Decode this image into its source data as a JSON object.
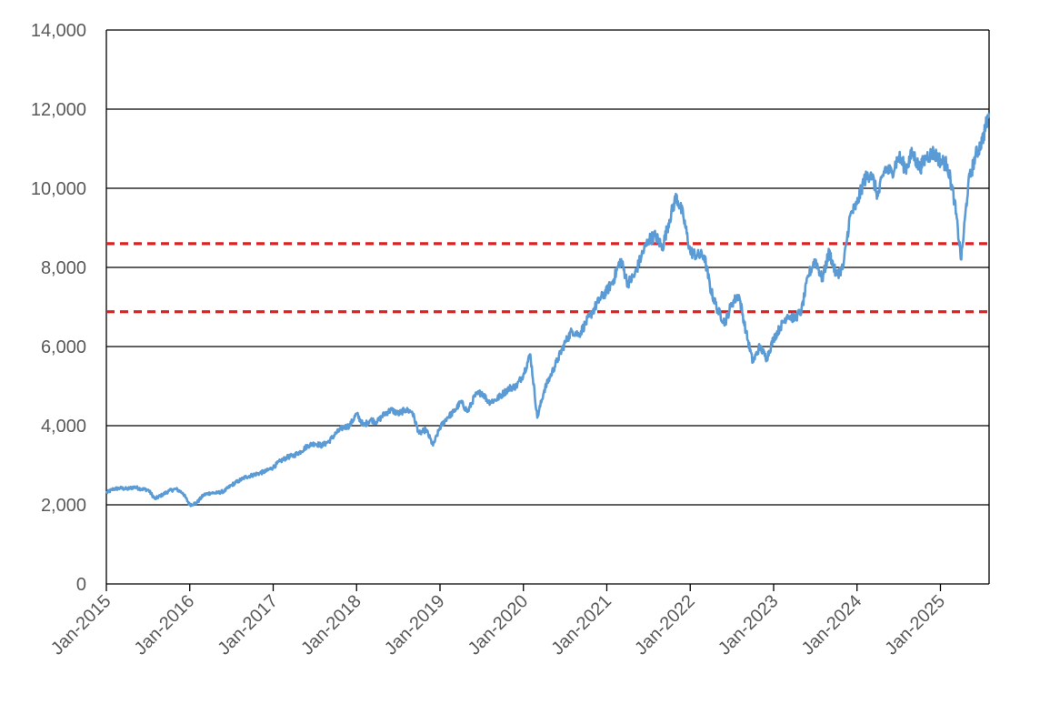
{
  "chart_data": {
    "type": "line",
    "title": "",
    "xlabel": "",
    "ylabel": "",
    "ylim": [
      0,
      14000
    ],
    "yticks": [
      0,
      2000,
      4000,
      6000,
      8000,
      10000,
      12000,
      14000
    ],
    "ytick_labels": [
      "0",
      "2,000",
      "4,000",
      "6,000",
      "8,000",
      "10,000",
      "12,000",
      "14,000"
    ],
    "xlim": [
      "2015-01",
      "2025-08"
    ],
    "xticks": [
      "2015-01",
      "2016-01",
      "2017-01",
      "2018-01",
      "2019-01",
      "2020-01",
      "2021-01",
      "2022-01",
      "2023-01",
      "2024-01",
      "2025-01"
    ],
    "xtick_labels": [
      "Jan-2015",
      "Jan-2016",
      "Jan-2017",
      "Jan-2018",
      "Jan-2019",
      "Jan-2020",
      "Jan-2021",
      "Jan-2022",
      "Jan-2023",
      "Jan-2024",
      "Jan-2025"
    ],
    "grid": "horizontal",
    "legend": "none",
    "colors": {
      "series": "#5b9bd5",
      "reference": "#e02020",
      "grid": "#000000"
    },
    "reference_lines": [
      {
        "y": 8600,
        "style": "dashed"
      },
      {
        "y": 6880,
        "style": "dashed"
      }
    ],
    "series": [
      {
        "x": [
          "2015-01",
          "2015-02",
          "2015-03",
          "2015-04",
          "2015-05",
          "2015-06",
          "2015-07",
          "2015-08",
          "2015-09",
          "2015-10",
          "2015-11",
          "2015-12",
          "2016-01",
          "2016-02",
          "2016-03",
          "2016-04",
          "2016-05",
          "2016-06",
          "2016-07",
          "2016-08",
          "2016-09",
          "2016-10",
          "2016-11",
          "2016-12",
          "2017-01",
          "2017-02",
          "2017-03",
          "2017-04",
          "2017-05",
          "2017-06",
          "2017-07",
          "2017-08",
          "2017-09",
          "2017-10",
          "2017-11",
          "2017-12",
          "2018-01",
          "2018-02",
          "2018-03",
          "2018-04",
          "2018-05",
          "2018-06",
          "2018-07",
          "2018-08",
          "2018-09",
          "2018-10",
          "2018-11",
          "2018-12",
          "2019-01",
          "2019-02",
          "2019-03",
          "2019-04",
          "2019-05",
          "2019-06",
          "2019-07",
          "2019-08",
          "2019-09",
          "2019-10",
          "2019-11",
          "2019-12",
          "2020-01",
          "2020-02",
          "2020-03",
          "2020-04",
          "2020-05",
          "2020-06",
          "2020-07",
          "2020-08",
          "2020-09",
          "2020-10",
          "2020-11",
          "2020-12",
          "2021-01",
          "2021-02",
          "2021-03",
          "2021-04",
          "2021-05",
          "2021-06",
          "2021-07",
          "2021-08",
          "2021-09",
          "2021-10",
          "2021-11",
          "2021-12",
          "2022-01",
          "2022-02",
          "2022-03",
          "2022-04",
          "2022-05",
          "2022-06",
          "2022-07",
          "2022-08",
          "2022-09",
          "2022-10",
          "2022-11",
          "2022-12",
          "2023-01",
          "2023-02",
          "2023-03",
          "2023-04",
          "2023-05",
          "2023-06",
          "2023-07",
          "2023-08",
          "2023-09",
          "2023-10",
          "2023-11",
          "2023-12",
          "2024-01",
          "2024-02",
          "2024-03",
          "2024-04",
          "2024-05",
          "2024-06",
          "2024-07",
          "2024-08",
          "2024-09",
          "2024-10",
          "2024-11",
          "2024-12",
          "2025-01",
          "2025-02",
          "2025-03",
          "2025-04",
          "2025-05",
          "2025-06",
          "2025-07",
          "2025-08"
        ],
        "values": [
          2300,
          2400,
          2420,
          2400,
          2450,
          2400,
          2380,
          2150,
          2250,
          2350,
          2400,
          2300,
          2000,
          2050,
          2250,
          2300,
          2300,
          2350,
          2500,
          2600,
          2700,
          2750,
          2800,
          2850,
          2950,
          3100,
          3200,
          3250,
          3350,
          3500,
          3550,
          3500,
          3600,
          3800,
          3950,
          4000,
          4300,
          4000,
          4150,
          4100,
          4300,
          4400,
          4300,
          4400,
          4350,
          3800,
          3900,
          3500,
          3950,
          4200,
          4350,
          4600,
          4350,
          4750,
          4850,
          4600,
          4650,
          4800,
          4950,
          5000,
          5300,
          5800,
          4200,
          4900,
          5300,
          5700,
          6100,
          6400,
          6300,
          6600,
          6900,
          7200,
          7400,
          7700,
          8200,
          7600,
          7800,
          8300,
          8700,
          8800,
          8500,
          9200,
          9800,
          9300,
          8400,
          8300,
          8300,
          7400,
          6900,
          6600,
          7100,
          7300,
          6400,
          5600,
          6000,
          5700,
          6200,
          6500,
          6800,
          6700,
          6900,
          7800,
          8200,
          7700,
          8400,
          7800,
          8000,
          9300,
          9600,
          10200,
          10400,
          9800,
          10500,
          10400,
          10800,
          10500,
          10900,
          10500,
          10800,
          10900,
          10700,
          10600,
          9700,
          8200,
          10100,
          10800,
          11200,
          11900
        ]
      }
    ]
  }
}
